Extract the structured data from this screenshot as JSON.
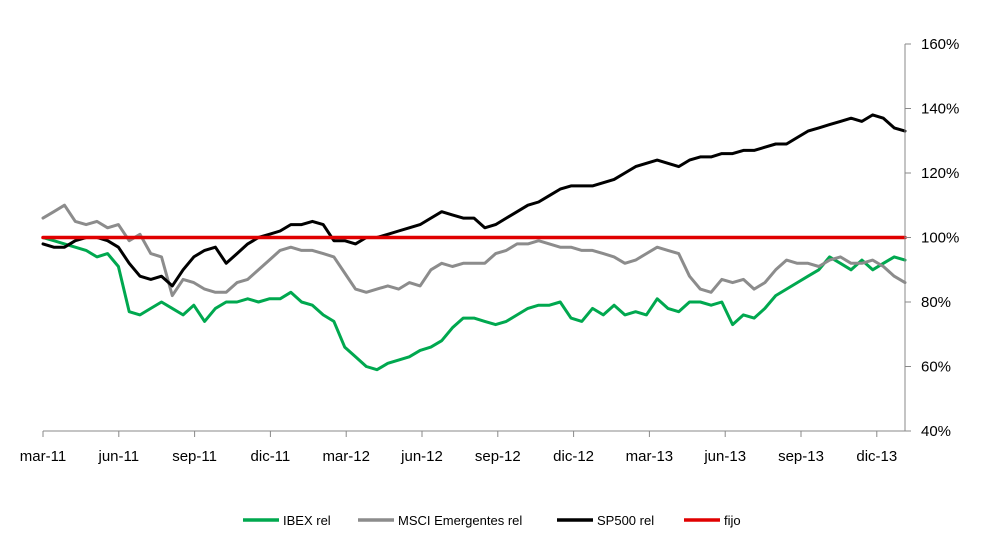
{
  "chart_data": {
    "type": "line",
    "title": "",
    "xlabel": "",
    "ylabel": "",
    "x_tick_labels": [
      "mar-11",
      "jun-11",
      "sep-11",
      "dic-11",
      "mar-12",
      "jun-12",
      "sep-12",
      "dic-12",
      "mar-13",
      "jun-13",
      "sep-13",
      "dic-13"
    ],
    "y_tick_labels": [
      "40%",
      "60%",
      "80%",
      "100%",
      "120%",
      "140%",
      "160%"
    ],
    "ylim": [
      40,
      160
    ],
    "y_axis_side": "right",
    "grid": false,
    "legend_position": "bottom",
    "series": [
      {
        "name": "IBEX rel",
        "color": "#00A84F",
        "values": [
          100,
          99,
          98,
          97,
          96,
          94,
          95,
          91,
          77,
          76,
          78,
          80,
          78,
          76,
          79,
          74,
          78,
          80,
          80,
          81,
          80,
          81,
          81,
          83,
          80,
          79,
          76,
          74,
          66,
          63,
          60,
          59,
          61,
          62,
          63,
          65,
          66,
          68,
          72,
          75,
          75,
          74,
          73,
          74,
          76,
          78,
          79,
          79,
          80,
          75,
          74,
          78,
          76,
          79,
          76,
          77,
          76,
          81,
          78,
          77,
          80,
          80,
          79,
          80,
          73,
          76,
          75,
          78,
          82,
          84,
          86,
          88,
          90,
          94,
          92,
          90,
          93,
          90,
          92,
          94,
          93
        ]
      },
      {
        "name": "MSCI Emergentes rel",
        "color": "#8C8C8C",
        "values": [
          106,
          108,
          110,
          105,
          104,
          105,
          103,
          104,
          99,
          101,
          95,
          94,
          82,
          87,
          86,
          84,
          83,
          83,
          86,
          87,
          90,
          93,
          96,
          97,
          96,
          96,
          95,
          94,
          89,
          84,
          83,
          84,
          85,
          84,
          86,
          85,
          90,
          92,
          91,
          92,
          92,
          92,
          95,
          96,
          98,
          98,
          99,
          98,
          97,
          97,
          96,
          96,
          95,
          94,
          92,
          93,
          95,
          97,
          96,
          95,
          88,
          84,
          83,
          87,
          86,
          87,
          84,
          86,
          90,
          93,
          92,
          92,
          91,
          93,
          94,
          92,
          92,
          93,
          91,
          88,
          86
        ]
      },
      {
        "name": "SP500 rel",
        "color": "#000000",
        "values": [
          98,
          97,
          97,
          99,
          100,
          100,
          99,
          97,
          92,
          88,
          87,
          88,
          85,
          90,
          94,
          96,
          97,
          92,
          95,
          98,
          100,
          101,
          102,
          104,
          104,
          105,
          104,
          99,
          99,
          98,
          100,
          100,
          101,
          102,
          103,
          104,
          106,
          108,
          107,
          106,
          106,
          103,
          104,
          106,
          108,
          110,
          111,
          113,
          115,
          116,
          116,
          116,
          117,
          118,
          120,
          122,
          123,
          124,
          123,
          122,
          124,
          125,
          125,
          126,
          126,
          127,
          127,
          128,
          129,
          129,
          131,
          133,
          134,
          135,
          136,
          137,
          136,
          138,
          137,
          134,
          133
        ]
      },
      {
        "name": "fijo",
        "color": "#E00000",
        "values": [
          100,
          100
        ]
      }
    ]
  }
}
